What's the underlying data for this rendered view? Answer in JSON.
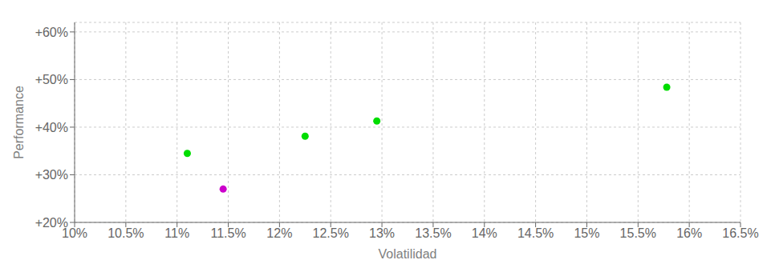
{
  "chart_data": {
    "type": "scatter",
    "xlabel": "Volatilidad",
    "ylabel": "Performance",
    "x": [
      0.111,
      0.1145,
      0.1225,
      0.1295,
      0.1578
    ],
    "values": [
      0.345,
      0.27,
      0.381,
      0.413,
      0.484
    ],
    "colors": [
      "#00dd00",
      "#cc00cc",
      "#00dd00",
      "#00dd00",
      "#00dd00"
    ],
    "xlim": [
      0.1,
      0.165
    ],
    "ylim": [
      0.2,
      0.62
    ],
    "xticks": [
      {
        "value": 0.1,
        "label": "10%"
      },
      {
        "value": 0.105,
        "label": "10.5%"
      },
      {
        "value": 0.11,
        "label": "11%"
      },
      {
        "value": 0.115,
        "label": "11.5%"
      },
      {
        "value": 0.12,
        "label": "12%"
      },
      {
        "value": 0.125,
        "label": "12.5%"
      },
      {
        "value": 0.13,
        "label": "13%"
      },
      {
        "value": 0.135,
        "label": "13.5%"
      },
      {
        "value": 0.14,
        "label": "14%"
      },
      {
        "value": 0.145,
        "label": "14.5%"
      },
      {
        "value": 0.15,
        "label": "15%"
      },
      {
        "value": 0.155,
        "label": "15.5%"
      },
      {
        "value": 0.16,
        "label": "16%"
      },
      {
        "value": 0.165,
        "label": "16.5%"
      }
    ],
    "yticks": [
      {
        "value": 0.2,
        "label": "+20%"
      },
      {
        "value": 0.3,
        "label": "+30%"
      },
      {
        "value": 0.4,
        "label": "+40%"
      },
      {
        "value": 0.5,
        "label": "+50%"
      },
      {
        "value": 0.6,
        "label": "+60%"
      }
    ],
    "grid": true
  }
}
